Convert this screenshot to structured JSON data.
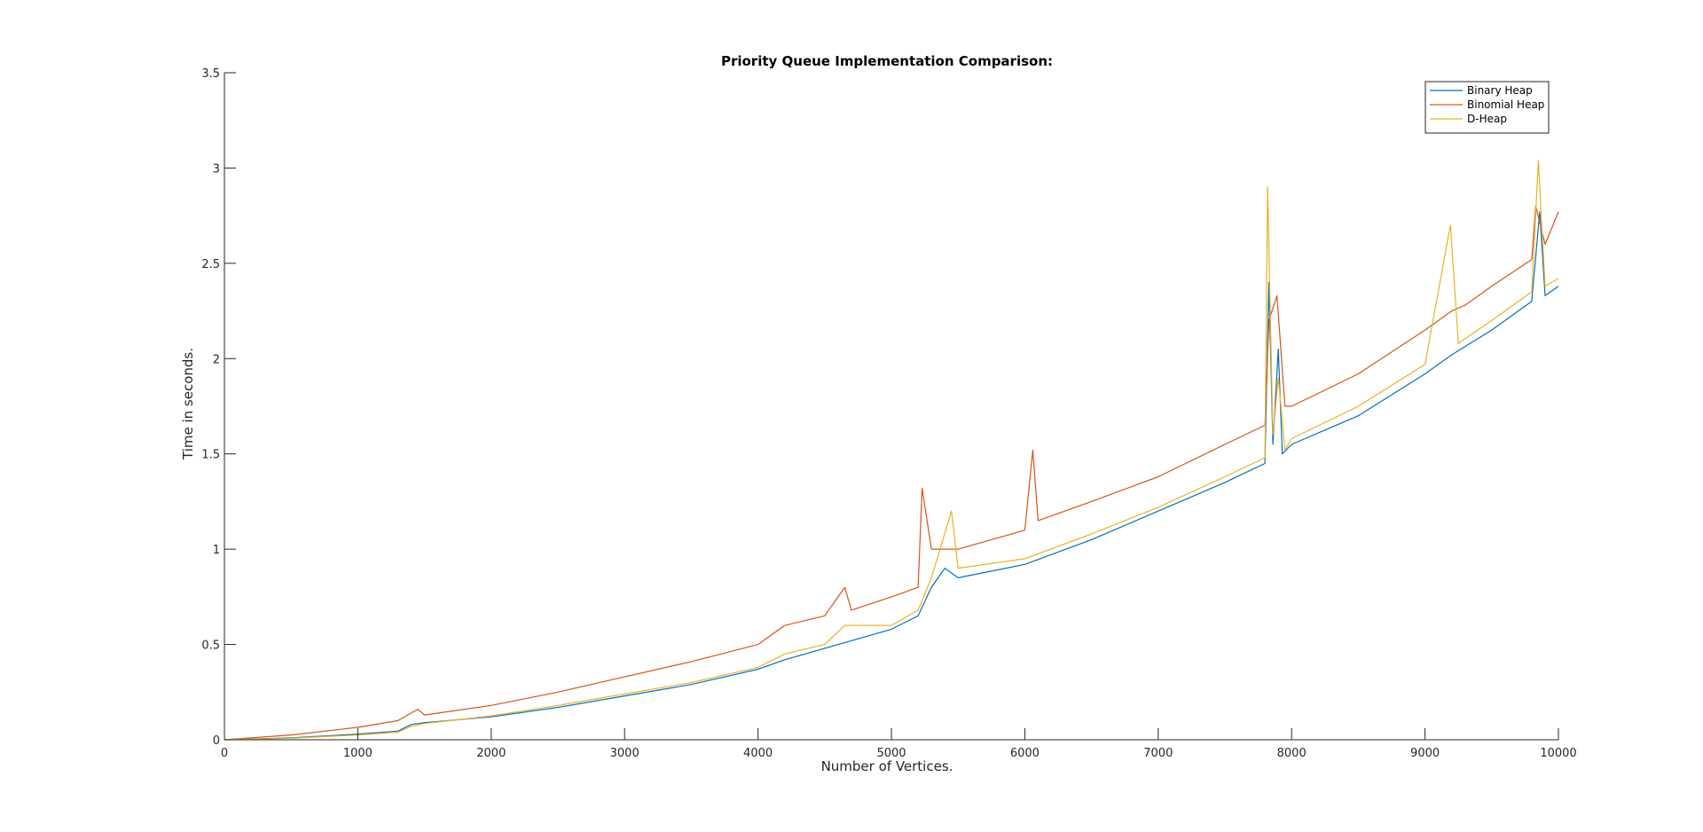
{
  "chart_data": {
    "type": "line",
    "title": "Priority Queue Implementation Comparison:",
    "xlabel": "Number of Vertices.",
    "ylabel": "Time in seconds.",
    "xlim": [
      0,
      10000
    ],
    "ylim": [
      0,
      3.5
    ],
    "xticks": [
      0,
      1000,
      2000,
      3000,
      4000,
      5000,
      6000,
      7000,
      8000,
      9000,
      10000
    ],
    "xtick_labels": [
      "0",
      "1000",
      "2000",
      "3000",
      "4000",
      "5000",
      "6000",
      "7000",
      "8000",
      "9000",
      "10000"
    ],
    "yticks": [
      0,
      0.5,
      1,
      1.5,
      2,
      2.5,
      3,
      3.5
    ],
    "ytick_labels": [
      "0",
      "0.5",
      "1",
      "1.5",
      "2",
      "2.5",
      "3",
      "3.5"
    ],
    "grid": false,
    "legend_position": "top-right",
    "series": [
      {
        "name": "Binary Heap",
        "color": "#0072BD",
        "points": [
          [
            0,
            0
          ],
          [
            500,
            0.01
          ],
          [
            1000,
            0.03
          ],
          [
            1300,
            0.045
          ],
          [
            1400,
            0.08
          ],
          [
            1500,
            0.09
          ],
          [
            2000,
            0.12
          ],
          [
            2500,
            0.17
          ],
          [
            3000,
            0.23
          ],
          [
            3500,
            0.29
          ],
          [
            4000,
            0.37
          ],
          [
            4200,
            0.42
          ],
          [
            4500,
            0.48
          ],
          [
            5000,
            0.58
          ],
          [
            5200,
            0.65
          ],
          [
            5300,
            0.8
          ],
          [
            5400,
            0.9
          ],
          [
            5500,
            0.85
          ],
          [
            6000,
            0.92
          ],
          [
            6500,
            1.05
          ],
          [
            7000,
            1.2
          ],
          [
            7500,
            1.35
          ],
          [
            7800,
            1.45
          ],
          [
            7830,
            2.4
          ],
          [
            7860,
            1.55
          ],
          [
            7900,
            2.05
          ],
          [
            7930,
            1.5
          ],
          [
            8000,
            1.55
          ],
          [
            8500,
            1.7
          ],
          [
            9000,
            1.92
          ],
          [
            9200,
            2.02
          ],
          [
            9500,
            2.15
          ],
          [
            9800,
            2.3
          ],
          [
            9860,
            2.77
          ],
          [
            9900,
            2.33
          ],
          [
            10000,
            2.38
          ]
        ]
      },
      {
        "name": "Binomial Heap",
        "color": "#D95319",
        "points": [
          [
            0,
            0
          ],
          [
            500,
            0.025
          ],
          [
            1000,
            0.065
          ],
          [
            1300,
            0.1
          ],
          [
            1450,
            0.16
          ],
          [
            1500,
            0.13
          ],
          [
            2000,
            0.18
          ],
          [
            2500,
            0.25
          ],
          [
            3000,
            0.33
          ],
          [
            3500,
            0.41
          ],
          [
            4000,
            0.5
          ],
          [
            4200,
            0.6
          ],
          [
            4500,
            0.65
          ],
          [
            4650,
            0.8
          ],
          [
            4700,
            0.68
          ],
          [
            5000,
            0.75
          ],
          [
            5200,
            0.8
          ],
          [
            5230,
            1.32
          ],
          [
            5300,
            1.0
          ],
          [
            5500,
            1.0
          ],
          [
            6000,
            1.1
          ],
          [
            6060,
            1.52
          ],
          [
            6100,
            1.15
          ],
          [
            6500,
            1.25
          ],
          [
            7000,
            1.38
          ],
          [
            7500,
            1.55
          ],
          [
            7800,
            1.65
          ],
          [
            7830,
            2.2
          ],
          [
            7890,
            2.33
          ],
          [
            7950,
            1.75
          ],
          [
            8000,
            1.75
          ],
          [
            8500,
            1.92
          ],
          [
            9000,
            2.15
          ],
          [
            9200,
            2.25
          ],
          [
            9300,
            2.28
          ],
          [
            9500,
            2.38
          ],
          [
            9800,
            2.52
          ],
          [
            9830,
            2.8
          ],
          [
            9900,
            2.6
          ],
          [
            10000,
            2.77
          ]
        ]
      },
      {
        "name": "D-Heap",
        "color": "#EDB120",
        "points": [
          [
            0,
            0
          ],
          [
            500,
            0.008
          ],
          [
            1000,
            0.025
          ],
          [
            1300,
            0.04
          ],
          [
            1400,
            0.07
          ],
          [
            1500,
            0.085
          ],
          [
            2000,
            0.125
          ],
          [
            2500,
            0.18
          ],
          [
            3000,
            0.24
          ],
          [
            3500,
            0.3
          ],
          [
            4000,
            0.38
          ],
          [
            4200,
            0.45
          ],
          [
            4500,
            0.5
          ],
          [
            4650,
            0.6
          ],
          [
            5000,
            0.6
          ],
          [
            5200,
            0.68
          ],
          [
            5300,
            0.85
          ],
          [
            5450,
            1.2
          ],
          [
            5500,
            0.9
          ],
          [
            6000,
            0.95
          ],
          [
            6500,
            1.08
          ],
          [
            7000,
            1.22
          ],
          [
            7500,
            1.38
          ],
          [
            7800,
            1.48
          ],
          [
            7820,
            2.9
          ],
          [
            7860,
            1.6
          ],
          [
            7900,
            1.9
          ],
          [
            7950,
            1.52
          ],
          [
            8000,
            1.58
          ],
          [
            8500,
            1.75
          ],
          [
            9000,
            1.97
          ],
          [
            9190,
            2.7
          ],
          [
            9250,
            2.08
          ],
          [
            9500,
            2.2
          ],
          [
            9800,
            2.35
          ],
          [
            9850,
            3.04
          ],
          [
            9900,
            2.38
          ],
          [
            10000,
            2.42
          ]
        ]
      }
    ]
  }
}
